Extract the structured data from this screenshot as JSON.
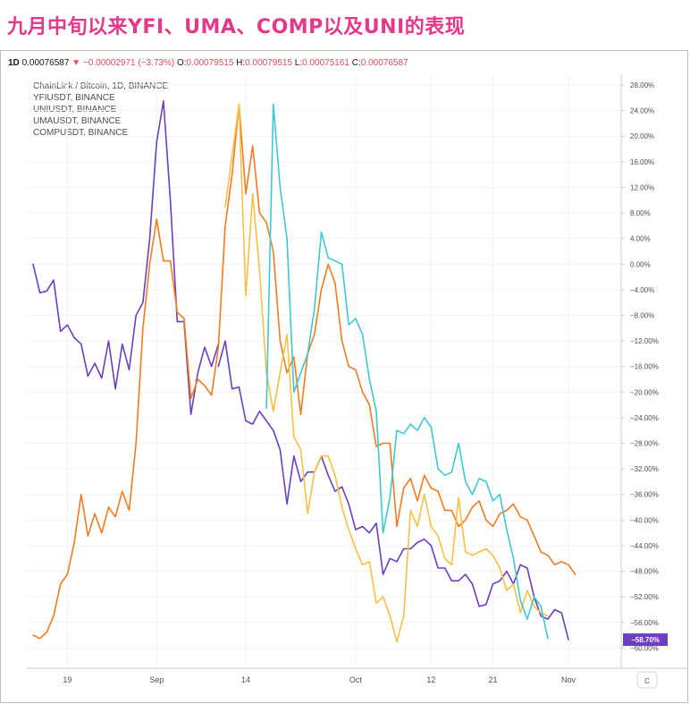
{
  "headline": "九月中旬以来YFI、UMA、COMP以及UNI的表现",
  "ohlc": {
    "interval": "1D",
    "price": "0.00076587",
    "change": "−0.00002971 (−3.73%)",
    "o_label": "O:",
    "o": "0.00079515",
    "h_label": "H:",
    "h": "0.00079515",
    "l_label": "L:",
    "l": "0.00075161",
    "c_label": "C:",
    "c": "0.00076587"
  },
  "legend": [
    "ChainLink / Bitcoin, 1D, BINANCE",
    "YFIUSDT, BINANCE",
    "UNIUSDT, BINANCE",
    "UMAUSDT, BINANCE",
    "COMPUSDT, BINANCE"
  ],
  "last_value_label": "−58.70%",
  "settings_glyph": "C",
  "colors": {
    "link_btc": "#6b3fc0",
    "yfi": "#f47b20",
    "uni": "#3fc8d4",
    "uma": "#f8c146",
    "comp": "#6b3fc0",
    "badge": "#6b3fc0",
    "headline": "#e4388b"
  },
  "chart_data": {
    "type": "line",
    "x_start_day": 14,
    "xlim": [
      14,
      96
    ],
    "ylim": [
      -62,
      30
    ],
    "y_ticks": [
      28,
      24,
      20,
      16,
      12,
      8,
      4,
      0,
      -4,
      -8,
      -12,
      -16,
      -20,
      -24,
      -28,
      -32,
      -36,
      -40,
      -44,
      -48,
      -52,
      -56,
      -60
    ],
    "y_tick_labels": [
      "28.00%",
      "24.00%",
      "20.00%",
      "16.00%",
      "12.00%",
      "8.00%",
      "4.00%",
      "0.00%",
      "−4.00%",
      "−8.00%",
      "−12.00%",
      "−16.00%",
      "−20.00%",
      "−24.00%",
      "−28.00%",
      "−32.00%",
      "−36.00%",
      "−40.00%",
      "−44.00%",
      "−48.00%",
      "−52.00%",
      "−56.00%",
      "−60.00%"
    ],
    "x_ticks": [
      {
        "day": 19,
        "label": "19"
      },
      {
        "day": 32,
        "label": "Sep"
      },
      {
        "day": 45,
        "label": "14"
      },
      {
        "day": 61,
        "label": "Oct"
      },
      {
        "day": 72,
        "label": "12"
      },
      {
        "day": 81,
        "label": "21"
      },
      {
        "day": 92,
        "label": "Nov"
      }
    ],
    "series": [
      {
        "name": "LINKBTC",
        "key": "link_btc",
        "start_day": 14,
        "values": [
          0,
          -4.5,
          -4.2,
          -2.5,
          -10.5,
          -9.5,
          -11.5,
          -12.5,
          -17.5,
          -15.5,
          -17.8,
          -12,
          -19.5,
          -12.5,
          -16.5,
          -8,
          -6,
          4,
          19,
          25.5,
          10,
          -9,
          -9,
          -23.5,
          -17,
          -13,
          -16,
          -12.5
        ]
      },
      {
        "name": "COMPUSDT",
        "key": "comp",
        "start_day": 41,
        "values": [
          -16,
          -12,
          -19.5,
          -19.2,
          -24.5,
          -25,
          -23,
          -24.5,
          -26,
          -29,
          -37.5,
          -30,
          -34,
          -32.5,
          -32.5,
          -30,
          -33,
          -35.5,
          -34.8,
          -37.5,
          -41.5,
          -41,
          -42,
          -40.5,
          -48.5,
          -46,
          -46.5,
          -44.5,
          -44.5,
          -43.5,
          -43,
          -44,
          -47.5,
          -47.5,
          -49.5,
          -49.5,
          -48.5,
          -50,
          -53.5,
          -53.2,
          -50,
          -49.5,
          -48,
          -50,
          -47,
          -47.5,
          -52,
          -55,
          -55.5,
          -54,
          -54.5,
          -58.7
        ]
      },
      {
        "name": "YFIUSDT",
        "key": "yfi",
        "start_day": 14,
        "values": [
          -58,
          -58.5,
          -57.5,
          -55,
          -50,
          -48.5,
          -43.5,
          -36,
          -42.5,
          -39,
          -42,
          -38,
          -39.5,
          -35.5,
          -38.5,
          -28,
          -10,
          0,
          7,
          0.5,
          0.5,
          -7.5,
          -8.5,
          -21,
          -18,
          -19,
          -20.5,
          -13,
          6,
          14,
          25,
          11,
          18.5,
          8,
          6.5,
          2,
          -12,
          -17,
          -14.5,
          -23.5,
          -14,
          -11,
          -4,
          0,
          -3,
          -12,
          -16,
          -16.5,
          -20,
          -22,
          -28.5,
          -28,
          -28,
          -41,
          -35,
          -33.5,
          -37,
          -33,
          -35,
          -35.5,
          -38.5,
          -38.5,
          -41,
          -40,
          -38,
          -37,
          -40,
          -41,
          -39,
          -38.5,
          -37.5,
          -39.5,
          -40,
          -42.5,
          -45,
          -45.5,
          -47,
          -46.5,
          -47,
          -48.5
        ]
      },
      {
        "name": "UMAUSDT",
        "key": "uma",
        "start_day": 42,
        "values": [
          9,
          17,
          25,
          -5,
          11,
          -1,
          -17,
          -23,
          -17,
          -11,
          -27,
          -29,
          -39,
          -32.5,
          -30,
          -30,
          -33,
          -38,
          -41.5,
          -44.5,
          -47,
          -46.5,
          -53,
          -52,
          -55,
          -59,
          -55,
          -38.5,
          -41,
          -36,
          -41,
          -42.5,
          -46,
          -47,
          -36.5,
          -45,
          -45.5,
          -45,
          -44.5,
          -45.5,
          -47.5,
          -51,
          -50,
          -54.5,
          -51,
          -53.5,
          -54.5,
          -55
        ]
      },
      {
        "name": "UNIUSDT",
        "key": "uni",
        "start_day": 48,
        "values": [
          -22.5,
          25,
          12,
          4,
          -20,
          -17,
          -14,
          -7,
          5,
          1,
          0.5,
          0,
          -9.5,
          -8.5,
          -11,
          -18,
          -23,
          -42,
          -36.5,
          -26,
          -26.5,
          -25,
          -26,
          -24,
          -25.5,
          -32,
          -33,
          -32.5,
          -28,
          -34,
          -36,
          -33.5,
          -34,
          -37,
          -36,
          -41.5,
          -46,
          -52.5,
          -55.5,
          -52,
          -53.5,
          -58.5
        ]
      }
    ]
  }
}
